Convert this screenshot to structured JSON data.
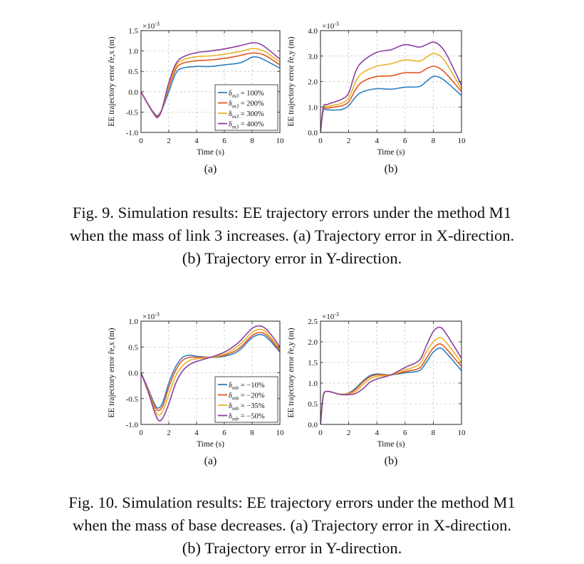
{
  "colors": {
    "c1": "#2e7fc2",
    "c2": "#e0581f",
    "c3": "#eab22a",
    "c4": "#8b3ea1"
  },
  "figures": [
    {
      "caption_lines": [
        "Fig. 9.   Simulation results: EE trajectory errors under the method M1",
        "when the mass of link 3 increases. (a) Trajectory error in X-direction.",
        "(b) Trajectory error in Y-direction."
      ],
      "legend_labels": [
        "δ_m3 = 100%",
        "δ_m3 = 200%",
        "δ_m3 = 300%",
        "δ_m3 = 400%"
      ]
    },
    {
      "caption_lines": [
        "Fig. 10.   Simulation results: EE trajectory errors under the method M1",
        "when the mass of base decreases. (a) Trajectory error in X-direction.",
        "(b) Trajectory error in Y-direction."
      ],
      "legend_labels": [
        "δ_mb = −10%",
        "δ_mb = −20%",
        "δ_mb = −35%",
        "δ_mb = −50%"
      ]
    }
  ],
  "chart_data": [
    {
      "type": "line",
      "panel": "(a)",
      "figure": "Fig. 9",
      "xlabel": "Time (s)",
      "ylabel": "EE trajectory error r̃e,x (m)",
      "exponent": "×10-3",
      "xlim": [
        0,
        10
      ],
      "ylim": [
        -1.0,
        1.5
      ],
      "xticks": [
        0,
        2,
        4,
        6,
        8,
        10
      ],
      "yticks": [
        -1.0,
        -0.5,
        0.0,
        0.5,
        1.0,
        1.5
      ],
      "yticklabels": [
        "-1.0",
        "-0.5",
        "0.0",
        "0.5",
        "1.0",
        "1.5"
      ],
      "grid": true,
      "legend": "bottom-right",
      "x": [
        0,
        0.5,
        1.0,
        1.2,
        1.5,
        2.0,
        2.5,
        3.0,
        4.0,
        5.0,
        6.0,
        7.0,
        7.5,
        8.0,
        8.5,
        9.0,
        10.0
      ],
      "series": [
        {
          "name": "δ_m3 = 100%",
          "values": [
            0.0,
            -0.3,
            -0.55,
            -0.58,
            -0.45,
            0.0,
            0.45,
            0.58,
            0.62,
            0.62,
            0.66,
            0.7,
            0.76,
            0.85,
            0.84,
            0.76,
            0.58
          ]
        },
        {
          "name": "δ_m3 = 200%",
          "values": [
            0.0,
            -0.3,
            -0.56,
            -0.6,
            -0.44,
            0.1,
            0.55,
            0.7,
            0.76,
            0.78,
            0.82,
            0.88,
            0.92,
            0.95,
            0.94,
            0.88,
            0.66
          ]
        },
        {
          "name": "δ_m3 = 300%",
          "values": [
            0.0,
            -0.31,
            -0.58,
            -0.62,
            -0.45,
            0.16,
            0.62,
            0.78,
            0.86,
            0.88,
            0.92,
            0.98,
            1.02,
            1.06,
            1.04,
            0.97,
            0.73
          ]
        },
        {
          "name": "δ_m3 = 400%",
          "values": [
            0.0,
            -0.31,
            -0.58,
            -0.63,
            -0.44,
            0.22,
            0.68,
            0.85,
            0.96,
            1.0,
            1.05,
            1.12,
            1.16,
            1.2,
            1.18,
            1.08,
            0.8
          ]
        }
      ]
    },
    {
      "type": "line",
      "panel": "(b)",
      "figure": "Fig. 9",
      "xlabel": "Time (s)",
      "ylabel": "EE trajectory error r̃e,y (m)",
      "exponent": "×10-3",
      "xlim": [
        0,
        10
      ],
      "ylim": [
        0.0,
        4.0
      ],
      "xticks": [
        0,
        2,
        4,
        6,
        8,
        10
      ],
      "yticks": [
        0.0,
        1.0,
        2.0,
        3.0,
        4.0
      ],
      "yticklabels": [
        "0.0",
        "1.0",
        "2.0",
        "3.0",
        "4.0"
      ],
      "grid": true,
      "x": [
        0,
        0.2,
        0.5,
        1.0,
        1.5,
        2.0,
        2.5,
        3.0,
        4.0,
        5.0,
        6.0,
        7.0,
        7.5,
        8.0,
        8.5,
        9.0,
        10.0
      ],
      "series": [
        {
          "name": "δ_m3 = 100%",
          "values": [
            0.0,
            0.85,
            0.88,
            0.88,
            0.9,
            1.05,
            1.4,
            1.6,
            1.72,
            1.7,
            1.78,
            1.8,
            2.0,
            2.2,
            2.15,
            1.95,
            1.45
          ]
        },
        {
          "name": "δ_m3 = 200%",
          "values": [
            0.0,
            0.9,
            0.95,
            1.0,
            1.05,
            1.2,
            1.7,
            2.0,
            2.2,
            2.22,
            2.35,
            2.35,
            2.5,
            2.6,
            2.5,
            2.25,
            1.6
          ]
        },
        {
          "name": "δ_m3 = 300%",
          "values": [
            0.0,
            0.95,
            1.02,
            1.08,
            1.15,
            1.35,
            2.0,
            2.35,
            2.6,
            2.7,
            2.85,
            2.8,
            2.95,
            3.1,
            3.0,
            2.65,
            1.7
          ]
        },
        {
          "name": "δ_m3 = 400%",
          "values": [
            0.0,
            1.0,
            1.1,
            1.2,
            1.3,
            1.55,
            2.4,
            2.8,
            3.15,
            3.25,
            3.45,
            3.35,
            3.45,
            3.55,
            3.4,
            3.0,
            1.85
          ]
        }
      ]
    },
    {
      "type": "line",
      "panel": "(a)",
      "figure": "Fig. 10",
      "xlabel": "Time (s)",
      "ylabel": "EE trajectory error r̃e,x (m)",
      "exponent": "×10-3",
      "xlim": [
        0,
        10
      ],
      "ylim": [
        -1.0,
        1.0
      ],
      "xticks": [
        0,
        2,
        4,
        6,
        8,
        10
      ],
      "yticks": [
        -1.0,
        -0.5,
        0.0,
        0.5,
        1.0
      ],
      "yticklabels": [
        "-1.0",
        "-0.5",
        "0.0",
        "0.5",
        "1.0"
      ],
      "grid": true,
      "legend": "bottom-right",
      "x": [
        0,
        0.5,
        1.0,
        1.3,
        1.6,
        2.0,
        2.5,
        3.0,
        3.5,
        4.0,
        5.0,
        6.0,
        7.0,
        8.0,
        8.7,
        9.3,
        10.0
      ],
      "series": [
        {
          "name": "δ_mb = −10%",
          "values": [
            0.0,
            -0.3,
            -0.62,
            -0.68,
            -0.55,
            -0.2,
            0.12,
            0.3,
            0.34,
            0.32,
            0.3,
            0.32,
            0.42,
            0.68,
            0.74,
            0.62,
            0.4
          ]
        },
        {
          "name": "δ_mb = −20%",
          "values": [
            0.0,
            -0.32,
            -0.66,
            -0.73,
            -0.62,
            -0.28,
            0.05,
            0.24,
            0.3,
            0.3,
            0.3,
            0.34,
            0.46,
            0.72,
            0.78,
            0.66,
            0.42
          ]
        },
        {
          "name": "δ_mb = −35%",
          "values": [
            0.0,
            -0.34,
            -0.72,
            -0.82,
            -0.72,
            -0.42,
            -0.06,
            0.14,
            0.24,
            0.27,
            0.3,
            0.36,
            0.52,
            0.78,
            0.84,
            0.7,
            0.46
          ]
        },
        {
          "name": "δ_mb = −50%",
          "values": [
            0.0,
            -0.36,
            -0.78,
            -0.93,
            -0.86,
            -0.6,
            -0.2,
            0.04,
            0.16,
            0.22,
            0.3,
            0.4,
            0.58,
            0.86,
            0.9,
            0.76,
            0.5
          ]
        }
      ]
    },
    {
      "type": "line",
      "panel": "(b)",
      "figure": "Fig. 10",
      "xlabel": "Time (s)",
      "ylabel": "EE trajectory error r̃e,y (m)",
      "exponent": "×10-3",
      "xlim": [
        0,
        10
      ],
      "ylim": [
        0.0,
        2.5
      ],
      "xticks": [
        0,
        2,
        4,
        6,
        8,
        10
      ],
      "yticks": [
        0.0,
        0.5,
        1.0,
        1.5,
        2.0,
        2.5
      ],
      "yticklabels": [
        "0.0",
        "0.5",
        "1.0",
        "1.5",
        "2.0",
        "2.5"
      ],
      "grid": true,
      "x": [
        0,
        0.2,
        0.5,
        1.0,
        1.5,
        2.0,
        2.5,
        3.0,
        3.5,
        4.0,
        5.0,
        6.0,
        7.0,
        7.5,
        8.0,
        8.5,
        9.0,
        10.0
      ],
      "series": [
        {
          "name": "δ_mb = −10%",
          "values": [
            0.0,
            0.7,
            0.8,
            0.76,
            0.73,
            0.76,
            0.88,
            1.05,
            1.18,
            1.22,
            1.2,
            1.25,
            1.3,
            1.5,
            1.75,
            1.85,
            1.7,
            1.3
          ]
        },
        {
          "name": "δ_mb = −20%",
          "values": [
            0.0,
            0.7,
            0.8,
            0.76,
            0.73,
            0.75,
            0.85,
            1.02,
            1.15,
            1.2,
            1.2,
            1.28,
            1.36,
            1.6,
            1.85,
            1.95,
            1.8,
            1.4
          ]
        },
        {
          "name": "δ_mb = −35%",
          "values": [
            0.0,
            0.7,
            0.8,
            0.76,
            0.73,
            0.74,
            0.8,
            0.96,
            1.1,
            1.16,
            1.2,
            1.32,
            1.45,
            1.75,
            2.0,
            2.1,
            1.95,
            1.5
          ]
        },
        {
          "name": "δ_mb = −50%",
          "values": [
            0.0,
            0.7,
            0.8,
            0.76,
            0.72,
            0.72,
            0.75,
            0.86,
            1.02,
            1.1,
            1.2,
            1.38,
            1.55,
            1.9,
            2.25,
            2.35,
            2.15,
            1.6
          ]
        }
      ]
    }
  ]
}
